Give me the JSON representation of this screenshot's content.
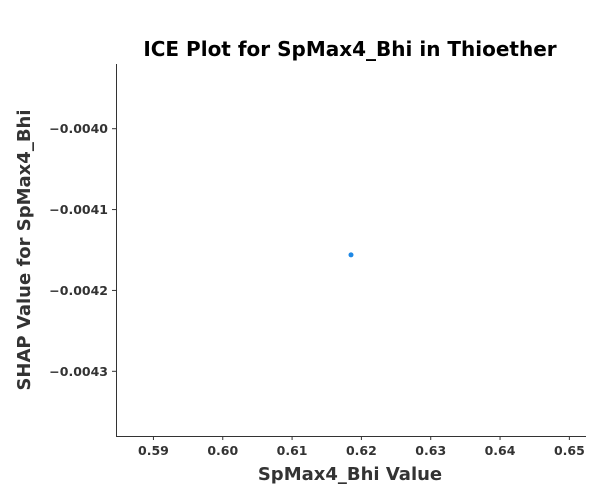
{
  "chart_data": {
    "type": "scatter",
    "title": "ICE Plot for SpMax4_Bhi in Thioether",
    "xlabel": "SpMax4_Bhi Value",
    "ylabel": "SHAP Value for SpMax4_Bhi",
    "xlim": [
      0.5846,
      0.6524
    ],
    "ylim": [
      -0.00438,
      -0.00392
    ],
    "x_ticks": [
      0.59,
      0.6,
      0.61,
      0.62,
      0.63,
      0.64,
      0.65
    ],
    "x_tick_labels": [
      "0.59",
      "0.60",
      "0.61",
      "0.62",
      "0.63",
      "0.64",
      "0.65"
    ],
    "y_ticks": [
      -0.004,
      -0.0041,
      -0.0042,
      -0.0043
    ],
    "y_tick_labels": [
      "−0.0040",
      "−0.0041",
      "−0.0042",
      "−0.0043"
    ],
    "grid": false,
    "series": [
      {
        "color": "#1e88e5",
        "points": [
          {
            "x": 0.6185,
            "y": -0.004156
          }
        ]
      }
    ]
  }
}
